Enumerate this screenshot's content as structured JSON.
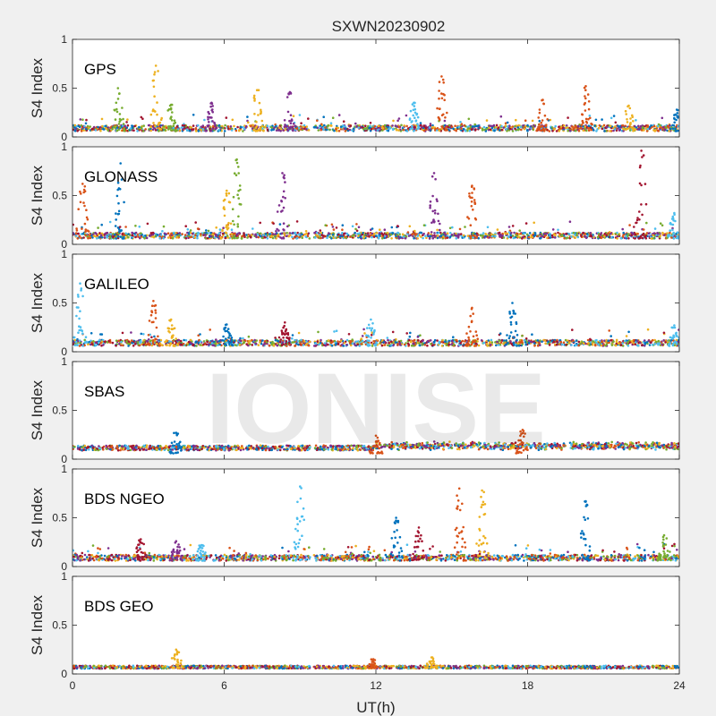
{
  "figure": {
    "title": "SXWN20230902",
    "xlabel": "UT(h)",
    "watermark": "IONISE",
    "background": "#f0f0f0"
  },
  "chart_data": {
    "type": "scatter",
    "title": "SXWN20230902",
    "xlabel": "UT(h)",
    "ylabel": "S4 Index",
    "xlim": [
      0,
      24
    ],
    "ylim": [
      0,
      1
    ],
    "xticks": [
      0,
      6,
      12,
      18,
      24
    ],
    "yticks": [
      0,
      0.5,
      1
    ],
    "grid": false,
    "data_gap_hours": [
      9.4,
      9.55
    ],
    "series_colors": [
      "#0072BD",
      "#D95319",
      "#EDB120",
      "#7E2F8E",
      "#77AC30",
      "#4DBEEE",
      "#A2142F"
    ],
    "panels": [
      {
        "label": "GPS",
        "ylabel": "S4 Index",
        "peaks": [
          {
            "x": 1.8,
            "y": 0.5,
            "series": 4
          },
          {
            "x": 3.3,
            "y": 0.73,
            "series": 2
          },
          {
            "x": 3.9,
            "y": 0.33,
            "series": 4
          },
          {
            "x": 5.5,
            "y": 0.35,
            "series": 3
          },
          {
            "x": 7.3,
            "y": 0.48,
            "series": 2
          },
          {
            "x": 8.6,
            "y": 0.46,
            "series": 3
          },
          {
            "x": 13.5,
            "y": 0.35,
            "series": 5
          },
          {
            "x": 14.6,
            "y": 0.62,
            "series": 1
          },
          {
            "x": 18.6,
            "y": 0.38,
            "series": 1
          },
          {
            "x": 20.3,
            "y": 0.52,
            "series": 1
          },
          {
            "x": 22.0,
            "y": 0.32,
            "series": 2
          },
          {
            "x": 23.9,
            "y": 0.28,
            "series": 0
          }
        ]
      },
      {
        "label": "GLONASS",
        "ylabel": "S4 Index",
        "peaks": [
          {
            "x": 0.4,
            "y": 0.62,
            "series": 1
          },
          {
            "x": 1.9,
            "y": 0.83,
            "series": 0
          },
          {
            "x": 6.1,
            "y": 0.55,
            "series": 2
          },
          {
            "x": 6.5,
            "y": 0.87,
            "series": 4
          },
          {
            "x": 8.3,
            "y": 0.73,
            "series": 3
          },
          {
            "x": 14.3,
            "y": 0.73,
            "series": 3
          },
          {
            "x": 15.8,
            "y": 0.6,
            "series": 1
          },
          {
            "x": 22.5,
            "y": 0.96,
            "series": 6
          },
          {
            "x": 23.8,
            "y": 0.32,
            "series": 5
          }
        ]
      },
      {
        "label": "GALILEO",
        "ylabel": "S4 Index",
        "peaks": [
          {
            "x": 0.3,
            "y": 0.7,
            "series": 5
          },
          {
            "x": 3.2,
            "y": 0.52,
            "series": 1
          },
          {
            "x": 3.9,
            "y": 0.33,
            "series": 2
          },
          {
            "x": 6.1,
            "y": 0.28,
            "series": 0
          },
          {
            "x": 8.4,
            "y": 0.3,
            "series": 6
          },
          {
            "x": 11.8,
            "y": 0.33,
            "series": 5
          },
          {
            "x": 15.8,
            "y": 0.45,
            "series": 1
          },
          {
            "x": 17.4,
            "y": 0.5,
            "series": 0
          },
          {
            "x": 23.8,
            "y": 0.27,
            "series": 5
          }
        ]
      },
      {
        "label": "SBAS",
        "ylabel": "S4 Index",
        "peaks": [
          {
            "x": 4.1,
            "y": 0.27,
            "series": 0
          },
          {
            "x": 12.0,
            "y": 0.24,
            "series": 1
          },
          {
            "x": 17.8,
            "y": 0.3,
            "series": 1
          }
        ]
      },
      {
        "label": "BDS NGEO",
        "ylabel": "S4 Index",
        "peaks": [
          {
            "x": 2.7,
            "y": 0.28,
            "series": 6
          },
          {
            "x": 4.1,
            "y": 0.26,
            "series": 3
          },
          {
            "x": 5.1,
            "y": 0.22,
            "series": 5
          },
          {
            "x": 9.0,
            "y": 0.82,
            "series": 5
          },
          {
            "x": 12.8,
            "y": 0.5,
            "series": 0
          },
          {
            "x": 13.7,
            "y": 0.4,
            "series": 6
          },
          {
            "x": 15.3,
            "y": 0.8,
            "series": 1
          },
          {
            "x": 16.2,
            "y": 0.78,
            "series": 2
          },
          {
            "x": 20.3,
            "y": 0.67,
            "series": 0
          },
          {
            "x": 23.4,
            "y": 0.32,
            "series": 4
          }
        ]
      },
      {
        "label": "BDS GEO",
        "ylabel": "S4 Index",
        "peaks": [
          {
            "x": 4.1,
            "y": 0.25,
            "series": 2
          },
          {
            "x": 11.9,
            "y": 0.15,
            "series": 1
          },
          {
            "x": 14.2,
            "y": 0.17,
            "series": 2
          }
        ]
      }
    ]
  }
}
